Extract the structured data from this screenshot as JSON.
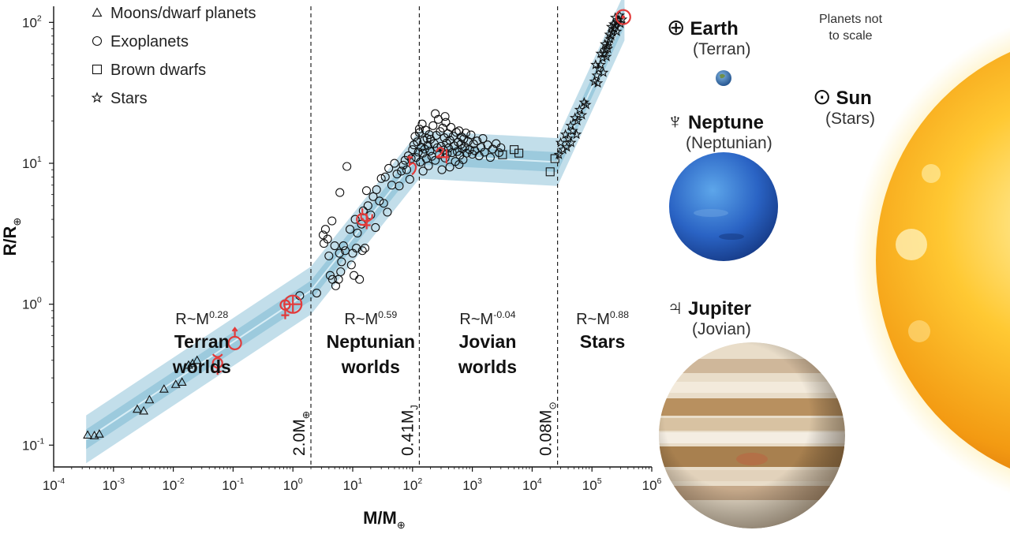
{
  "chart_data": {
    "type": "scatter",
    "xlabel": "M/M",
    "xlabel_sub": "⊕",
    "ylabel": "R/R",
    "ylabel_sub": "⊕",
    "x_scale": "log",
    "y_scale": "log",
    "xlim": [
      0.0001,
      1000000
    ],
    "ylim": [
      0.07,
      130
    ],
    "x_ticks": [
      {
        "base": "10",
        "exp": "-4"
      },
      {
        "base": "10",
        "exp": "-3"
      },
      {
        "base": "10",
        "exp": "-2"
      },
      {
        "base": "10",
        "exp": "-1"
      },
      {
        "base": "10",
        "exp": "0"
      },
      {
        "base": "10",
        "exp": "1"
      },
      {
        "base": "10",
        "exp": "2"
      },
      {
        "base": "10",
        "exp": "3"
      },
      {
        "base": "10",
        "exp": "4"
      },
      {
        "base": "10",
        "exp": "5"
      },
      {
        "base": "10",
        "exp": "6"
      }
    ],
    "x_tick_values": [
      0.0001,
      0.001,
      0.01,
      0.1,
      1,
      10,
      100,
      1000,
      10000,
      100000,
      1000000
    ],
    "y_ticks": [
      {
        "base": "10",
        "exp": "-1",
        "value": 0.1
      },
      {
        "base": "10",
        "exp": "0",
        "value": 1
      },
      {
        "base": "10",
        "exp": "1",
        "value": 10
      },
      {
        "base": "10",
        "exp": "2",
        "value": 100
      }
    ],
    "legend": [
      {
        "marker": "triangle",
        "label": "Moons/dwarf planets"
      },
      {
        "marker": "circle",
        "label": "Exoplanets"
      },
      {
        "marker": "square",
        "label": "Brown dwarfs"
      },
      {
        "marker": "star",
        "label": "Stars"
      }
    ],
    "boundaries": [
      {
        "x": 2.0,
        "label": "2.0M",
        "sub": "⊕"
      },
      {
        "x": 130,
        "label": "0.41M",
        "sub": "J"
      },
      {
        "x": 26600,
        "label": "0.08M",
        "sub": "⊙"
      }
    ],
    "regimes": [
      {
        "law": "R~M",
        "exponent": "0.28",
        "name_line1": "Terran",
        "name_line2": "worlds",
        "x_center": 0.03
      },
      {
        "law": "R~M",
        "exponent": "0.59",
        "name_line1": "Neptunian",
        "name_line2": "worlds",
        "x_center": 20
      },
      {
        "law": "R~M",
        "exponent": "-0.04",
        "name_line1": "Jovian",
        "name_line2": "worlds",
        "x_center": 1800
      },
      {
        "law": "R~M",
        "exponent": "0.88",
        "name_line1": "Stars",
        "name_line2": "",
        "x_center": 150000
      }
    ],
    "fit_band": {
      "center": [
        [
          0.00035,
          0.11
        ],
        [
          2.0,
          1.25
        ],
        [
          130,
          11.5
        ],
        [
          26600,
          10.2
        ],
        [
          350000,
          110
        ]
      ],
      "inner_halfwidth_dex": 0.07,
      "outer_halfwidth_dex": 0.17
    },
    "series": [
      {
        "marker": "triangle",
        "points": [
          [
            0.00037,
            0.118
          ],
          [
            0.00048,
            0.117
          ],
          [
            0.00058,
            0.12
          ],
          [
            0.0025,
            0.18
          ],
          [
            0.0032,
            0.175
          ],
          [
            0.004,
            0.21
          ],
          [
            0.007,
            0.25
          ],
          [
            0.011,
            0.27
          ],
          [
            0.014,
            0.28
          ],
          [
            0.018,
            0.37
          ],
          [
            0.021,
            0.38
          ],
          [
            0.025,
            0.4
          ]
        ]
      },
      {
        "marker": "circle",
        "points": [
          [
            1.3,
            1.15
          ],
          [
            2.5,
            1.2
          ],
          [
            3.2,
            3.1
          ],
          [
            3.5,
            3.4
          ],
          [
            3.8,
            2.9
          ],
          [
            4.0,
            2.2
          ],
          [
            4.2,
            1.6
          ],
          [
            4.6,
            1.5
          ],
          [
            5.2,
            1.35
          ],
          [
            5.8,
            1.5
          ],
          [
            6.3,
            1.7
          ],
          [
            5.0,
            2.6
          ],
          [
            6.0,
            2.3
          ],
          [
            6.5,
            2.0
          ],
          [
            7.0,
            2.6
          ],
          [
            7.5,
            2.4
          ],
          [
            8.0,
            9.5
          ],
          [
            9.0,
            3.4
          ],
          [
            9.5,
            1.9
          ],
          [
            10,
            2.3
          ],
          [
            10.5,
            1.6
          ],
          [
            11,
            4.0
          ],
          [
            11.5,
            2.5
          ],
          [
            12,
            3.2
          ],
          [
            13,
            1.5
          ],
          [
            14,
            3.7
          ],
          [
            14.5,
            2.4
          ],
          [
            15,
            4.6
          ],
          [
            16,
            2.5
          ],
          [
            17,
            6.4
          ],
          [
            18,
            5.0
          ],
          [
            20,
            4.3
          ],
          [
            22,
            5.8
          ],
          [
            24,
            3.5
          ],
          [
            25,
            6.5
          ],
          [
            28,
            5.4
          ],
          [
            30,
            7.8
          ],
          [
            33,
            5.2
          ],
          [
            35,
            8.0
          ],
          [
            38,
            4.5
          ],
          [
            40,
            9.2
          ],
          [
            45,
            7.0
          ],
          [
            50,
            10.0
          ],
          [
            55,
            8.4
          ],
          [
            60,
            6.9
          ],
          [
            65,
            8.8
          ],
          [
            70,
            9.7
          ],
          [
            75,
            10.5
          ],
          [
            80,
            9.0
          ],
          [
            85,
            11.3
          ],
          [
            90,
            7.7
          ],
          [
            95,
            10.8
          ],
          [
            100,
            12.5
          ],
          [
            6.1,
            6.2
          ],
          [
            4.5,
            3.9
          ],
          [
            3.3,
            2.7
          ],
          [
            105,
            13.5
          ],
          [
            110,
            15.5
          ],
          [
            115,
            11.0
          ],
          [
            120,
            14.2
          ],
          [
            125,
            12.0
          ],
          [
            130,
            16.5
          ],
          [
            135,
            10.2
          ],
          [
            140,
            13.0
          ],
          [
            145,
            19.0
          ],
          [
            150,
            11.8
          ],
          [
            155,
            14.5
          ],
          [
            160,
            12.6
          ],
          [
            165,
            17.2
          ],
          [
            170,
            10.8
          ],
          [
            175,
            15.0
          ],
          [
            180,
            13.4
          ],
          [
            185,
            9.6
          ],
          [
            190,
            16.0
          ],
          [
            195,
            12.2
          ],
          [
            200,
            14.8
          ],
          [
            210,
            11.2
          ],
          [
            220,
            18.5
          ],
          [
            230,
            13.8
          ],
          [
            240,
            10.5
          ],
          [
            250,
            15.8
          ],
          [
            260,
            12.9
          ],
          [
            270,
            20.5
          ],
          [
            280,
            11.5
          ],
          [
            290,
            16.8
          ],
          [
            300,
            13.2
          ],
          [
            310,
            9.0
          ],
          [
            320,
            17.8
          ],
          [
            330,
            12.4
          ],
          [
            340,
            15.2
          ],
          [
            350,
            10.9
          ],
          [
            360,
            19.5
          ],
          [
            370,
            13.9
          ],
          [
            380,
            11.7
          ],
          [
            390,
            16.2
          ],
          [
            400,
            12.8
          ],
          [
            420,
            14.6
          ],
          [
            440,
            18.0
          ],
          [
            460,
            11.9
          ],
          [
            480,
            15.6
          ],
          [
            500,
            13.3
          ],
          [
            520,
            10.3
          ],
          [
            540,
            16.6
          ],
          [
            560,
            12.1
          ],
          [
            580,
            14.1
          ],
          [
            600,
            17.0
          ],
          [
            620,
            11.4
          ],
          [
            640,
            13.6
          ],
          [
            660,
            15.4
          ],
          [
            680,
            12.7
          ],
          [
            700,
            10.6
          ],
          [
            720,
            14.9
          ],
          [
            750,
            13.1
          ],
          [
            780,
            16.4
          ],
          [
            800,
            11.8
          ],
          [
            850,
            14.3
          ],
          [
            900,
            12.5
          ],
          [
            950,
            15.9
          ],
          [
            1000,
            11.6
          ],
          [
            1050,
            13.7
          ],
          [
            1100,
            12.3
          ],
          [
            1200,
            14.4
          ],
          [
            1300,
            11.3
          ],
          [
            1400,
            13.0
          ],
          [
            1500,
            15.0
          ],
          [
            1600,
            12.0
          ],
          [
            1800,
            13.5
          ],
          [
            2000,
            11.0
          ],
          [
            2200,
            12.6
          ],
          [
            2500,
            13.8
          ],
          [
            2800,
            11.9
          ],
          [
            3000,
            12.9
          ],
          [
            150,
            8.8
          ],
          [
            350,
            21.5
          ],
          [
            420,
            9.4
          ],
          [
            130,
            17.5
          ],
          [
            240,
            22.5
          ],
          [
            600,
            9.8
          ]
        ]
      },
      {
        "marker": "square",
        "points": [
          [
            3200,
            11.5
          ],
          [
            5000,
            12.5
          ],
          [
            6000,
            11.8
          ],
          [
            20000,
            8.7
          ],
          [
            24000,
            10.8
          ]
        ]
      },
      {
        "marker": "star",
        "points": [
          [
            28000,
            11.5
          ],
          [
            30000,
            14
          ],
          [
            33000,
            12.5
          ],
          [
            36000,
            16
          ],
          [
            40000,
            15
          ],
          [
            44000,
            18.5
          ],
          [
            48000,
            17
          ],
          [
            52000,
            21
          ],
          [
            57000,
            20
          ],
          [
            62000,
            24
          ],
          [
            68000,
            22
          ],
          [
            74000,
            27
          ],
          [
            80000,
            26
          ],
          [
            110000,
            38
          ],
          [
            120000,
            42
          ],
          [
            130000,
            47
          ],
          [
            140000,
            50
          ],
          [
            150000,
            56
          ],
          [
            160000,
            60
          ],
          [
            170000,
            64
          ],
          [
            180000,
            68
          ],
          [
            190000,
            72
          ],
          [
            200000,
            76
          ],
          [
            210000,
            80
          ],
          [
            220000,
            85
          ],
          [
            235000,
            90
          ],
          [
            250000,
            95
          ],
          [
            265000,
            100
          ],
          [
            280000,
            104
          ],
          [
            300000,
            98
          ],
          [
            320000,
            105
          ],
          [
            140000,
            60
          ],
          [
            115000,
            50
          ],
          [
            165000,
            70
          ],
          [
            195000,
            82
          ],
          [
            230000,
            97
          ],
          [
            245000,
            108
          ],
          [
            210000,
            93
          ],
          [
            185000,
            65
          ],
          [
            155000,
            44
          ],
          [
            125000,
            37
          ],
          [
            175000,
            57
          ],
          [
            260000,
            86
          ],
          [
            290000,
            112
          ],
          [
            45000,
            14
          ],
          [
            38000,
            13
          ],
          [
            55000,
            16
          ]
        ]
      }
    ],
    "solar_system": [
      {
        "symbol": "mercury",
        "x": 0.055,
        "y": 0.383
      },
      {
        "symbol": "mars",
        "x": 0.107,
        "y": 0.53
      },
      {
        "symbol": "venus",
        "x": 0.815,
        "y": 0.95
      },
      {
        "symbol": "earth",
        "x": 1.0,
        "y": 1.0
      },
      {
        "symbol": "uranus",
        "x": 14.5,
        "y": 4.0
      },
      {
        "symbol": "neptune",
        "x": 17.1,
        "y": 3.88
      },
      {
        "symbol": "saturn",
        "x": 95,
        "y": 9.45
      },
      {
        "symbol": "jupiter",
        "x": 318,
        "y": 11.2
      },
      {
        "symbol": "sun",
        "x": 333000,
        "y": 109
      }
    ],
    "highlight_color": "#e23b3b",
    "band_color": "#8fc3d8"
  },
  "side_panel": {
    "earth": {
      "symbol": "⊕",
      "name": "Earth",
      "category": "(Terran)"
    },
    "neptune": {
      "symbol": "♆",
      "name": "Neptune",
      "category": "(Neptunian)"
    },
    "jupiter": {
      "symbol": "♃",
      "name": "Jupiter",
      "category": "(Jovian)"
    },
    "sun": {
      "symbol": "⊙",
      "name": "Sun",
      "category": "(Stars)"
    },
    "scale_note_line1": "Planets not",
    "scale_note_line2": "to scale"
  }
}
